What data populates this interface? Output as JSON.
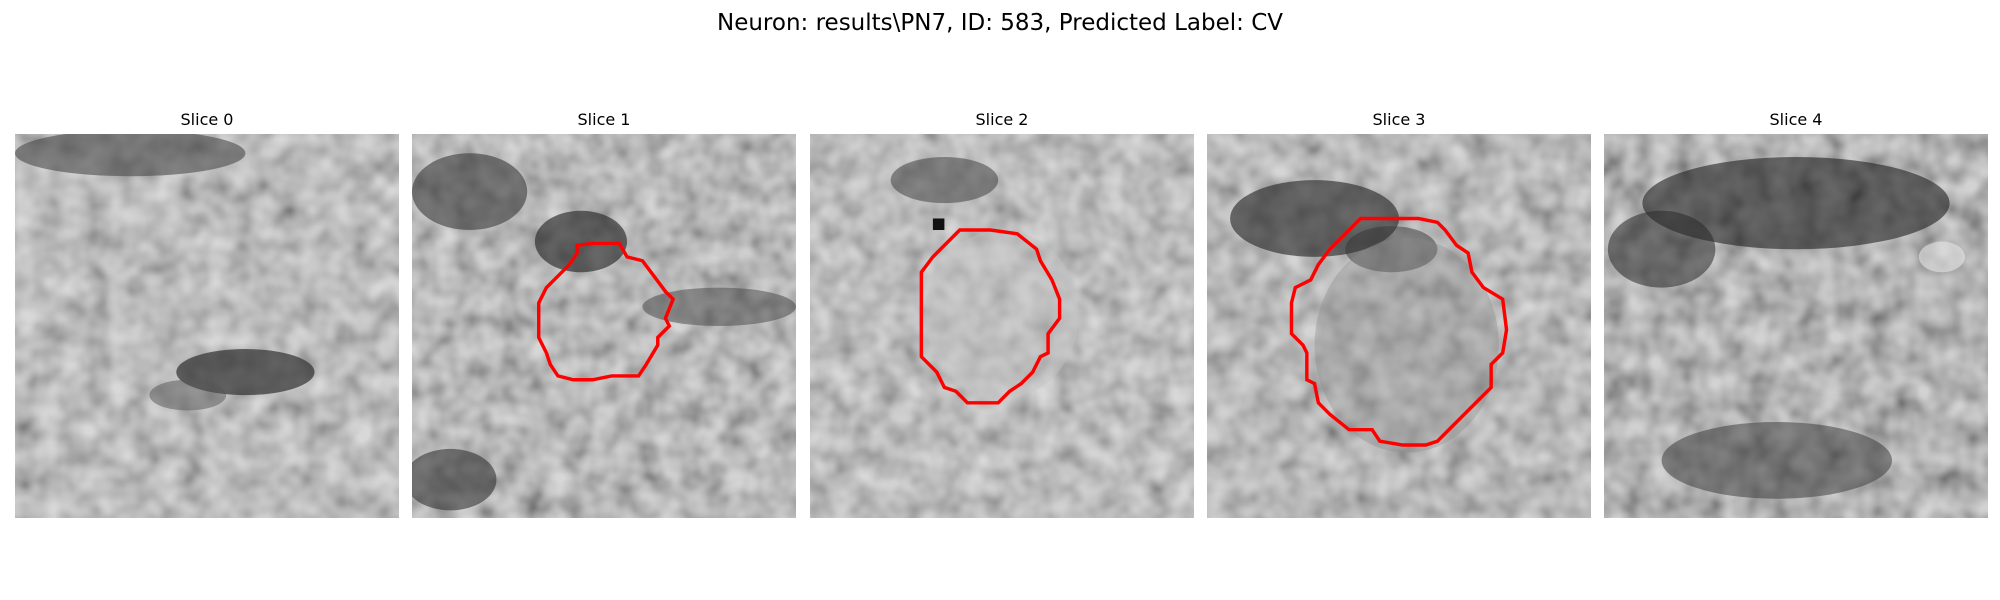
{
  "figure": {
    "title": "Neuron: results\\PN7, ID: 583, Predicted Label: CV",
    "contour_color": "#ff0000"
  },
  "slices": [
    {
      "label": "Slice 0",
      "has_contour": false
    },
    {
      "label": "Slice 1",
      "has_contour": true
    },
    {
      "label": "Slice 2",
      "has_contour": true
    },
    {
      "label": "Slice 3",
      "has_contour": true
    },
    {
      "label": "Slice 4",
      "has_contour": false
    }
  ]
}
